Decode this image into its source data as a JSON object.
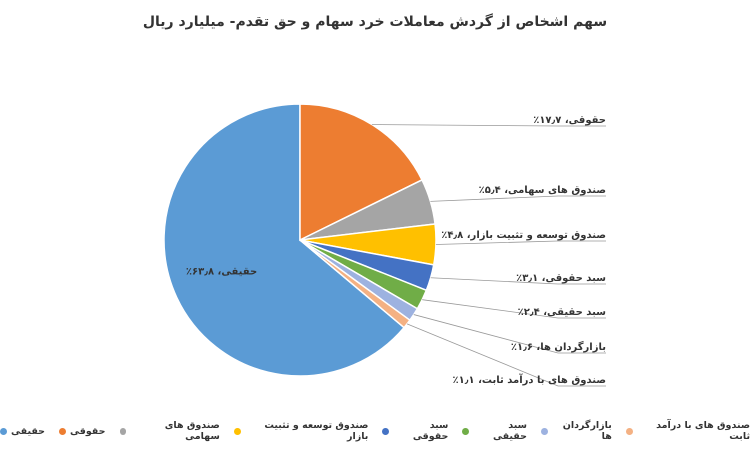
{
  "chart_data": {
    "type": "pie",
    "title": "سهم اشخاص از گردش معاملات خرد سهام و حق تقدم- میلیارد ریال",
    "categories": [
      "حقیقی",
      "حقوقی",
      "صندوق های سهامی",
      "صندوق توسعه و تثبیت بازار",
      "سبد حقوقی",
      "سبد حقیقی",
      "بازارگردان ها",
      "صندوق های با درآمد ثابت"
    ],
    "values": [
      63.8,
      17.7,
      5.4,
      4.8,
      3.1,
      2.4,
      1.6,
      1.1
    ],
    "value_labels": [
      "حقیقی، ۶۳٫۸٪",
      "حقوقی، ۱۷٫۷٪",
      "صندوق های سهامی، ۵٫۴٪",
      "صندوق توسعه و تثبیت بازار، ۴٫۸٪",
      "سبد حقوقی، ۳٫۱٪",
      "سبد حقیقی، ۲٫۴٪",
      "بازارگردان ها، ۱٫۶٪",
      "صندوق های با درآمد ثابت، ۱٫۱٪"
    ],
    "colors": [
      "#5b9bd5",
      "#ed7d31",
      "#a5a5a5",
      "#ffc000",
      "#4472c4",
      "#70ad47",
      "#9db2e0",
      "#f4b183"
    ],
    "legend": "bottom"
  }
}
